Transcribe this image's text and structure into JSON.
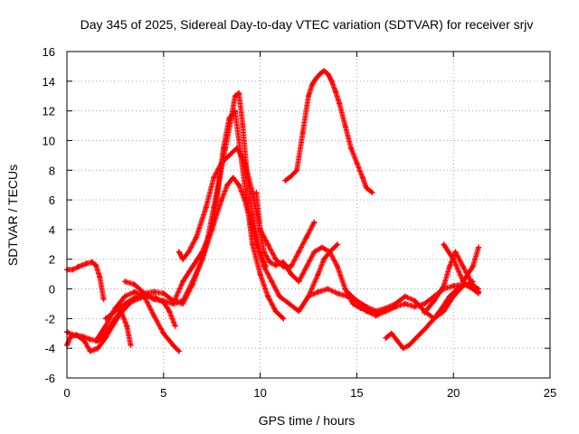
{
  "chart_data": {
    "type": "scatter",
    "title": "Day 345 of 2025, Sidereal Day-to-day VTEC variation (SDTVAR) for receiver srjv",
    "xlabel": "GPS time / hours",
    "ylabel": "SDTVAR / TECUs",
    "xlim": [
      0,
      25
    ],
    "ylim": [
      -6,
      16
    ],
    "xticks": [
      0,
      5,
      10,
      15,
      20,
      25
    ],
    "yticks": [
      -6,
      -4,
      -2,
      0,
      2,
      4,
      6,
      8,
      10,
      12,
      14,
      16
    ],
    "grid": true,
    "marker": "+",
    "color": "#ff0000",
    "series": [
      {
        "x": [
          0.0,
          0.3,
          0.6,
          1.0,
          1.3,
          1.5,
          1.7,
          1.9
        ],
        "y": [
          1.3,
          1.3,
          1.5,
          1.7,
          1.8,
          1.6,
          0.8,
          -0.7
        ]
      },
      {
        "x": [
          0.0,
          0.3,
          0.8,
          1.2,
          1.6,
          2.0,
          2.5,
          2.8,
          3.1,
          3.3
        ],
        "y": [
          -2.9,
          -3.1,
          -3.2,
          -3.4,
          -3.5,
          -3.0,
          -2.0,
          -1.5,
          -2.5,
          -3.8
        ]
      },
      {
        "x": [
          0.0,
          0.2,
          0.5,
          0.9,
          1.2,
          1.6,
          2.0,
          2.4,
          2.8,
          3.3,
          3.8,
          4.2,
          4.6,
          5.0,
          5.3,
          5.6
        ],
        "y": [
          -3.8,
          -3.2,
          -3.1,
          -3.5,
          -4.2,
          -4.0,
          -3.3,
          -2.4,
          -1.6,
          -0.9,
          -0.6,
          -0.5,
          -0.6,
          -0.9,
          -1.5,
          -2.5
        ]
      },
      {
        "x": [
          1.5,
          2.0,
          2.5,
          3.0,
          3.5,
          4.0,
          4.5,
          5.0,
          5.5,
          5.8
        ],
        "y": [
          -3.5,
          -2.5,
          -1.3,
          -0.5,
          -0.2,
          -0.5,
          -1.8,
          -3.0,
          -3.8,
          -4.2
        ]
      },
      {
        "x": [
          2.0,
          2.5,
          3.0,
          3.5,
          4.0,
          4.5,
          5.0,
          5.5,
          6.0,
          6.5,
          7.0,
          7.3,
          7.6,
          7.9,
          8.2,
          8.5,
          8.7,
          8.9,
          9.1,
          9.3,
          9.6,
          10.0,
          10.3
        ],
        "y": [
          -2.0,
          -1.5,
          -1.0,
          -0.6,
          -0.3,
          -0.2,
          -0.3,
          -0.8,
          -1.0,
          0.3,
          2.0,
          3.5,
          5.5,
          7.5,
          9.5,
          11.5,
          13.0,
          13.2,
          11.0,
          8.0,
          5.0,
          2.5,
          1.5
        ]
      },
      {
        "x": [
          3.0,
          3.5,
          4.0,
          4.5,
          5.0,
          5.5,
          6.0,
          6.5,
          7.0,
          7.5,
          7.8,
          8.1,
          8.4,
          8.7,
          9.0,
          9.3,
          9.6,
          10.0,
          10.4,
          10.8,
          11.2
        ],
        "y": [
          0.5,
          0.3,
          -0.3,
          -0.7,
          -0.8,
          -1.0,
          -0.8,
          0.5,
          2.0,
          4.0,
          6.5,
          9.5,
          11.5,
          12.0,
          9.0,
          6.0,
          3.0,
          1.0,
          -0.5,
          -1.5,
          -2.0
        ]
      },
      {
        "x": [
          5.5,
          6.0,
          6.5,
          7.0,
          7.5,
          8.0,
          8.3,
          8.6,
          8.9,
          9.2,
          9.5,
          9.8,
          10.2,
          10.6,
          11.0,
          11.5,
          12.0,
          12.5,
          13.0,
          13.3,
          13.6,
          14.0
        ],
        "y": [
          -1.0,
          0.5,
          1.5,
          2.5,
          4.0,
          6.0,
          7.0,
          7.5,
          7.0,
          6.0,
          4.5,
          3.0,
          1.5,
          0.5,
          -0.5,
          -1.0,
          -1.5,
          -0.5,
          1.0,
          2.0,
          2.5,
          3.0
        ]
      },
      {
        "x": [
          5.8,
          6.0,
          6.3,
          6.7,
          7.2,
          7.6,
          8.0,
          8.4,
          8.8,
          9.2,
          9.6,
          10.0,
          10.4,
          10.8,
          11.2,
          11.6,
          12.0,
          12.4,
          12.8
        ],
        "y": [
          2.5,
          2.0,
          2.5,
          3.5,
          5.5,
          7.5,
          8.5,
          9.0,
          9.5,
          8.5,
          6.5,
          4.0,
          3.0,
          2.0,
          1.5,
          1.5,
          2.5,
          3.5,
          4.5
        ]
      },
      {
        "x": [
          9.8,
          10.0,
          10.2,
          10.5,
          10.8,
          11.2,
          11.6,
          12.0,
          12.4,
          12.8,
          13.2,
          13.6,
          14.0,
          14.4,
          14.8,
          15.2,
          15.6,
          16.0,
          16.5,
          17.0
        ],
        "y": [
          6.5,
          4.0,
          2.5,
          1.8,
          1.6,
          1.8,
          1.0,
          0.5,
          1.5,
          2.5,
          2.8,
          2.5,
          1.5,
          0.0,
          -1.0,
          -1.3,
          -1.5,
          -1.6,
          -1.5,
          -1.2
        ]
      },
      {
        "x": [
          11.3,
          11.6,
          11.9,
          12.2,
          12.5,
          12.7,
          12.9,
          13.1,
          13.3,
          13.5,
          13.7,
          13.9,
          14.1,
          14.4,
          14.7,
          15.0,
          15.3,
          15.5,
          15.8
        ],
        "y": [
          7.3,
          7.6,
          8.0,
          10.5,
          13.0,
          13.8,
          14.2,
          14.5,
          14.7,
          14.5,
          14.0,
          13.3,
          12.5,
          11.0,
          9.5,
          8.5,
          7.5,
          6.8,
          6.5
        ]
      },
      {
        "x": [
          12.5,
          13.0,
          13.5,
          14.0,
          14.5,
          15.0,
          15.5,
          16.0,
          16.5,
          17.0,
          17.5,
          18.0,
          18.5,
          19.0,
          19.5,
          20.0,
          20.5,
          21.0
        ],
        "y": [
          -0.5,
          -0.2,
          0.0,
          -0.3,
          -0.5,
          -0.8,
          -1.2,
          -1.5,
          -1.3,
          -1.0,
          -0.5,
          -0.8,
          -1.5,
          -2.0,
          -1.5,
          -0.5,
          0.2,
          0.5
        ]
      },
      {
        "x": [
          14.5,
          15.0,
          15.5,
          16.0,
          16.5,
          17.0,
          17.5,
          18.0,
          18.5,
          19.0,
          19.5,
          20.0,
          20.5,
          21.0,
          21.3
        ],
        "y": [
          -0.2,
          -0.8,
          -1.5,
          -1.8,
          -1.5,
          -1.2,
          -1.0,
          -1.2,
          -1.0,
          -0.5,
          0.0,
          0.2,
          0.3,
          0.2,
          0.0
        ]
      },
      {
        "x": [
          16.5,
          16.8,
          17.1,
          17.4,
          17.7,
          18.0,
          18.3,
          18.6,
          19.0,
          19.4,
          19.8,
          20.2,
          20.6,
          21.0,
          21.3
        ],
        "y": [
          -3.3,
          -3.0,
          -3.5,
          -4.0,
          -3.8,
          -3.4,
          -3.0,
          -2.6,
          -2.0,
          -1.3,
          -0.5,
          0.0,
          0.3,
          0.0,
          -0.3
        ]
      },
      {
        "x": [
          18.5,
          19.0,
          19.5,
          19.8,
          20.1,
          20.5,
          21.0,
          21.3
        ],
        "y": [
          -1.6,
          -0.8,
          0.2,
          1.5,
          2.5,
          1.5,
          0.3,
          -0.2
        ]
      },
      {
        "x": [
          19.5,
          20.0,
          20.5,
          21.0,
          21.3
        ],
        "y": [
          3.0,
          2.0,
          0.5,
          1.5,
          2.8
        ]
      }
    ]
  }
}
